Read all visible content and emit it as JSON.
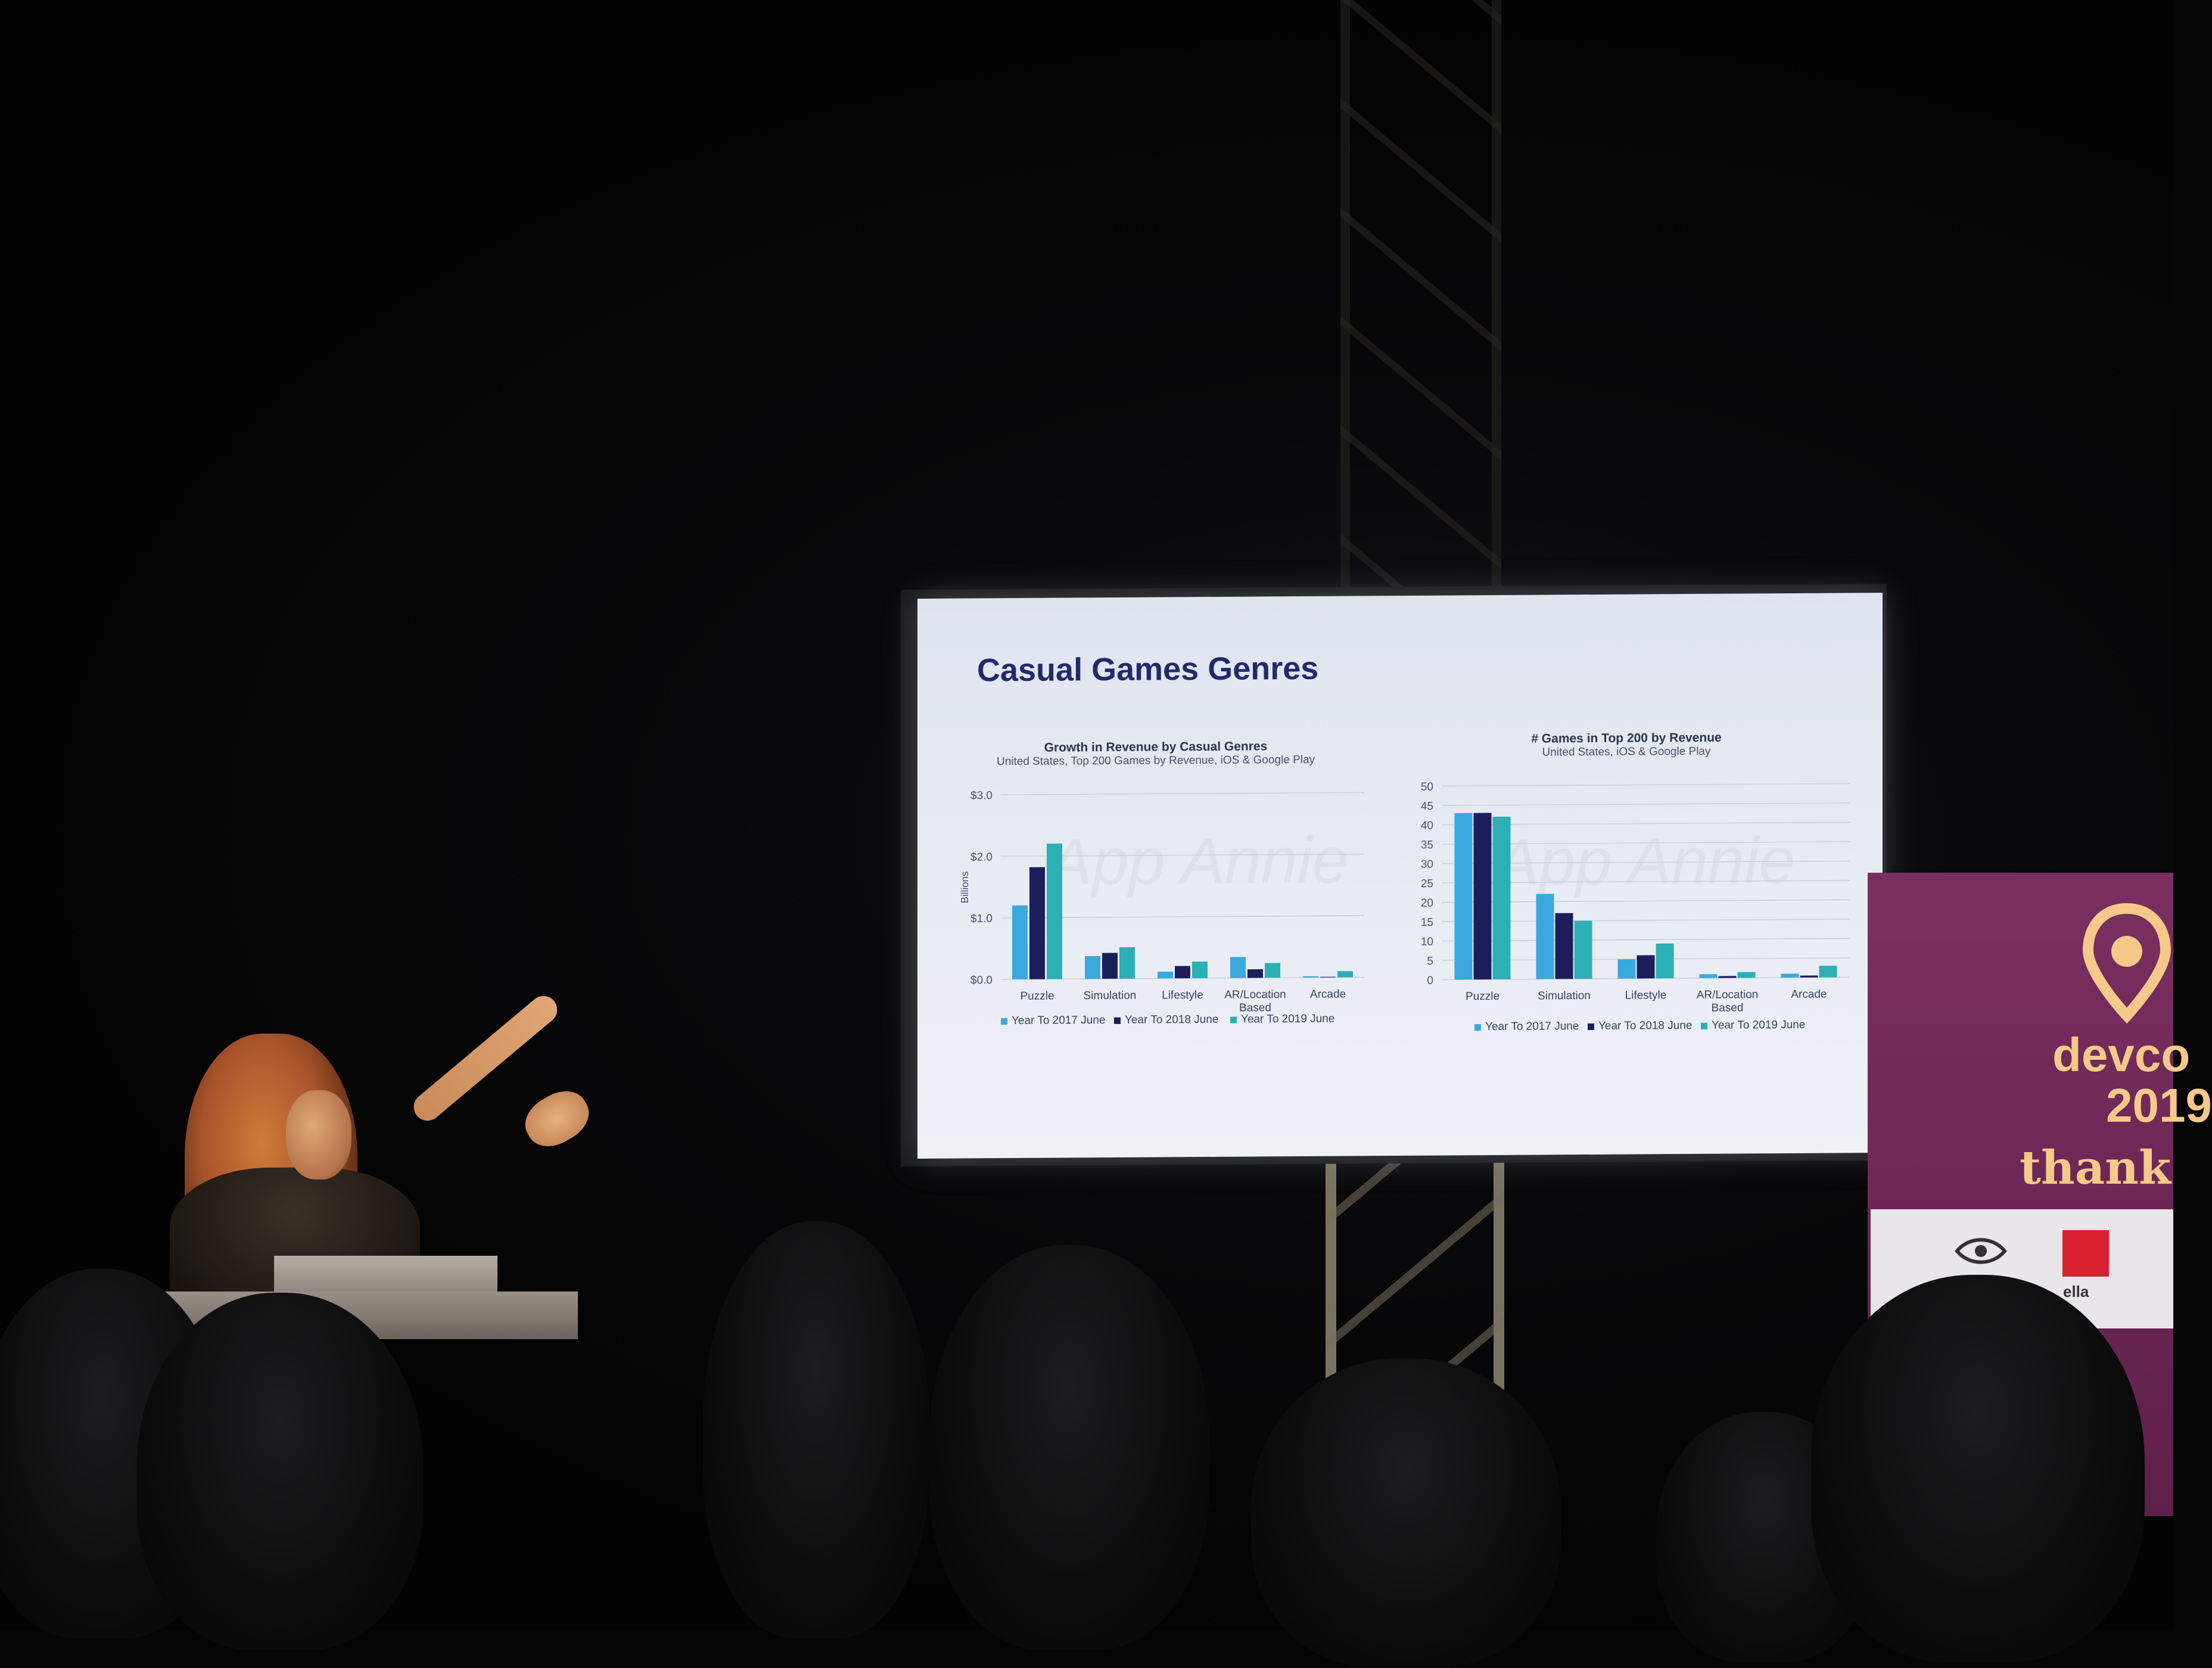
{
  "slide": {
    "title": "Casual Games Genres",
    "watermark": "App Annie"
  },
  "chart_data": [
    {
      "type": "bar",
      "title": "Growth in Revenue by Casual Genres",
      "subtitle": "United States, Top 200 Games by Revenue, iOS &  Google Play",
      "ylabel": "Billions",
      "ylim": [
        0,
        3
      ],
      "yticks": [
        "$3.0",
        "$2.0",
        "$1.0",
        "$0.0"
      ],
      "categories": [
        "Puzzle",
        "Simulation",
        "Lifestyle",
        "AR/Location Based",
        "Arcade"
      ],
      "series": [
        {
          "name": "Year To 2017 June",
          "color": "#39a9e0",
          "values": [
            1.2,
            0.37,
            0.11,
            0.34,
            0.02
          ]
        },
        {
          "name": "Year To 2018 June",
          "color": "#1a1f5c",
          "values": [
            1.82,
            0.42,
            0.2,
            0.14,
            0.01
          ]
        },
        {
          "name": "Year To 2019 June",
          "color": "#2bb0b5",
          "values": [
            2.2,
            0.51,
            0.27,
            0.24,
            0.1
          ]
        }
      ]
    },
    {
      "type": "bar",
      "title": "# Games in Top 200 by Revenue",
      "subtitle": "United States, iOS &  Google Play",
      "ylim": [
        0,
        50
      ],
      "yticks": [
        "50",
        "45",
        "40",
        "35",
        "30",
        "25",
        "20",
        "15",
        "10",
        "5",
        "0"
      ],
      "categories": [
        "Puzzle",
        "Simulation",
        "Lifestyle",
        "AR/Location Based",
        "Arcade"
      ],
      "series": [
        {
          "name": "Year To 2017 June",
          "color": "#39a9e0",
          "values": [
            43,
            22,
            5,
            1,
            1
          ]
        },
        {
          "name": "Year To 2018 June",
          "color": "#1a1f5c",
          "values": [
            43,
            17,
            6,
            0.5,
            0.5
          ]
        },
        {
          "name": "Year To 2019 June",
          "color": "#2bb0b5",
          "values": [
            42,
            15,
            9,
            1.5,
            3
          ]
        }
      ]
    }
  ],
  "banner": {
    "brand": "devco",
    "year": "2019",
    "message": "thank",
    "sponsor": "ella",
    "accent": "#f6c98a",
    "background": "#6b2655"
  }
}
